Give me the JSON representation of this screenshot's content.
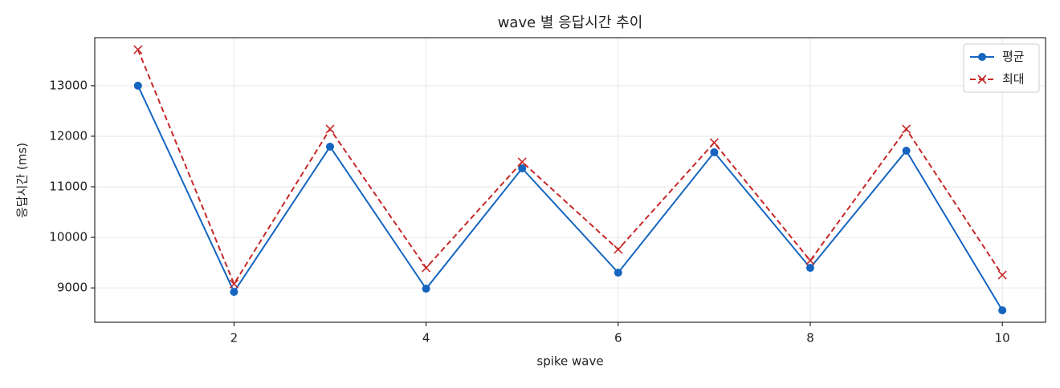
{
  "chart_data": {
    "type": "line",
    "title": "wave 별 응답시간 추이",
    "x_label": "spike wave",
    "y_label": "응답시간 (ms)",
    "x": [
      1,
      2,
      3,
      4,
      5,
      6,
      7,
      8,
      9,
      10
    ],
    "series": [
      {
        "name": "평균",
        "color": "#1565c0",
        "linestyle": "solid",
        "marker": "circle",
        "values": [
          13000,
          8921,
          11794,
          8984,
          11365,
          9302,
          11683,
          9397,
          11714,
          8556
        ]
      },
      {
        "name": "최대",
        "color": "#c62828",
        "linestyle": "dashed",
        "marker": "x",
        "values": [
          13714,
          9079,
          12143,
          9397,
          11492,
          9762,
          11873,
          9540,
          12143,
          9254
        ]
      }
    ],
    "xlim": [
      0.55,
      10.45
    ],
    "xticks": [
      2,
      4,
      6,
      8,
      10
    ],
    "ylim": [
      8320,
      13950
    ],
    "yticks": [
      9000,
      10000,
      11000,
      12000,
      13000
    ],
    "grid": true,
    "legend": "upper right"
  }
}
